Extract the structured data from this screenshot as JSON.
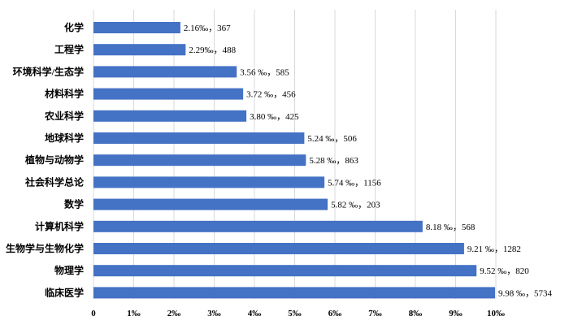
{
  "chart_data": {
    "type": "bar",
    "orientation": "horizontal",
    "categories": [
      "化学",
      "工程学",
      "环境科学/生态学",
      "材料科学",
      "农业科学",
      "地球科学",
      "植物与动物学",
      "社会科学总论",
      "数学",
      "计算机科学",
      "生物学与生物化学",
      "物理学",
      "临床医学"
    ],
    "values": [
      2.16,
      2.29,
      3.56,
      3.72,
      3.8,
      5.24,
      5.28,
      5.74,
      5.82,
      8.18,
      9.21,
      9.52,
      9.98
    ],
    "data_labels": [
      "2.16‰，367",
      "2.29‰，488",
      "3.56 ‰，585",
      "3.72 ‰，456",
      "3.80 ‰，425",
      "5.24 ‰，506",
      "5.28 ‰，863",
      "5.74 ‰，1156",
      "5.82 ‰，203",
      "8.18 ‰，568",
      "9.21 ‰，1282",
      "9.52 ‰，820",
      "9.98 ‰，5734"
    ],
    "x_ticks": [
      "0",
      "1‰",
      "2‰",
      "3‰",
      "4‰",
      "5‰",
      "6‰",
      "7‰",
      "8‰",
      "9‰",
      "10‰"
    ],
    "xlim": [
      0,
      10
    ],
    "grid": "vertical",
    "legend": "none",
    "bar_color": "#4472C4"
  }
}
